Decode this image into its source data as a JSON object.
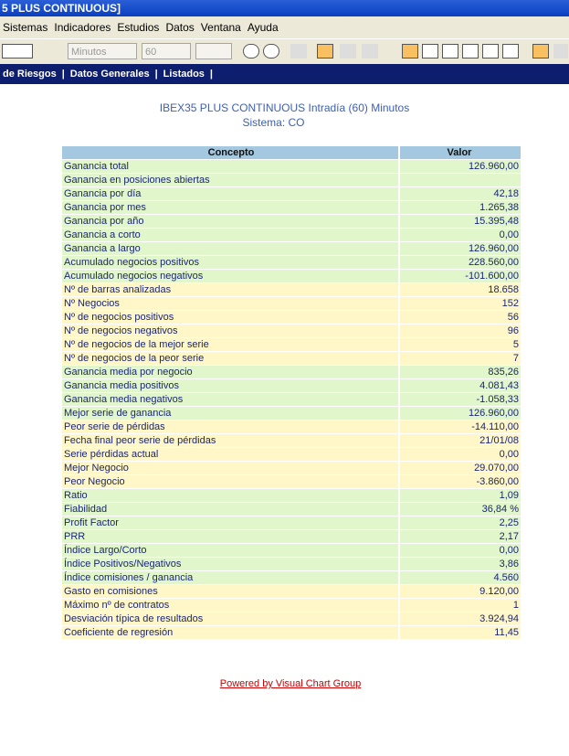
{
  "window": {
    "title": "5 PLUS CONTINUOUS]"
  },
  "menu": [
    "Sistemas",
    "Indicadores",
    "Estudios",
    "Datos",
    "Ventana",
    "Ayuda"
  ],
  "toolbar": {
    "timeframe": "Minutos",
    "period": "60"
  },
  "nav": [
    "de Riesgos",
    "|",
    "Datos Generales",
    "|",
    "Listados",
    "|"
  ],
  "report": {
    "title": "IBEX35 PLUS CONTINUOUS Intradía (60) Minutos",
    "subtitle": "Sistema: CO",
    "header": [
      "Concepto",
      "Valor"
    ],
    "header_color": "#a3c8e0",
    "sections": [
      {
        "color": "#e2f6cb",
        "rows": [
          [
            "Ganancia total",
            "126.960,00"
          ],
          [
            "Ganancia en posiciones abiertas",
            ""
          ],
          [
            "Ganancia por día",
            "42,18"
          ],
          [
            "Ganancia por mes",
            "1.265,38"
          ],
          [
            "Ganancia por año",
            "15.395,48"
          ],
          [
            "Ganancia a corto",
            "0,00"
          ],
          [
            "Ganancia a largo",
            "126.960,00"
          ],
          [
            "Acumulado negocios positivos",
            "228.560,00"
          ],
          [
            "Acumulado negocios negativos",
            "-101.600,00"
          ]
        ]
      },
      {
        "color": "#fff7c8",
        "rows": [
          [
            "Nº de barras analizadas",
            "18.658"
          ],
          [
            "Nº Negocios",
            "152"
          ],
          [
            "Nº de negocios positivos",
            "56"
          ],
          [
            "Nº de negocios negativos",
            "96"
          ],
          [
            "Nº de negocios de la mejor serie",
            "5"
          ],
          [
            "Nº de negocios de la peor serie",
            "7"
          ]
        ]
      },
      {
        "color": "#e2f6cb",
        "rows": [
          [
            "Ganancia media por negocio",
            "835,26"
          ],
          [
            "Ganancia media positivos",
            "4.081,43"
          ],
          [
            "Ganancia media negativos",
            "-1.058,33"
          ],
          [
            "Mejor serie de ganancia",
            "126.960,00"
          ]
        ]
      },
      {
        "color": "#fff7c8",
        "rows": [
          [
            "Peor serie de pérdidas",
            "-14.110,00"
          ],
          [
            "Fecha final peor serie de pérdidas",
            "21/01/08"
          ],
          [
            "Serie pérdidas actual",
            "0,00"
          ],
          [
            "Mejor Negocio",
            "29.070,00"
          ],
          [
            "Peor Negocio",
            "-3.860,00"
          ]
        ]
      },
      {
        "color": "#e2f6cb",
        "rows": [
          [
            "Ratio",
            "1,09"
          ],
          [
            "Fiabilidad",
            "36,84 %"
          ],
          [
            "Profit Factor",
            "2,25"
          ],
          [
            "PRR",
            "2,17"
          ],
          [
            "Índice Largo/Corto",
            "0,00"
          ],
          [
            "Índice Positivos/Negativos",
            "3,86"
          ],
          [
            "Índice comisiones / ganancia",
            "4.560"
          ]
        ]
      },
      {
        "color": "#fff7c8",
        "rows": [
          [
            "Gasto en comisiones",
            "9.120,00"
          ],
          [
            "Máximo nº de contratos",
            "1"
          ],
          [
            "Desviación típica de resultados",
            "3.924,94"
          ],
          [
            "Coeficiente de regresión",
            "11,45"
          ]
        ]
      }
    ]
  },
  "footer": {
    "link": "Powered by Visual Chart Group"
  }
}
